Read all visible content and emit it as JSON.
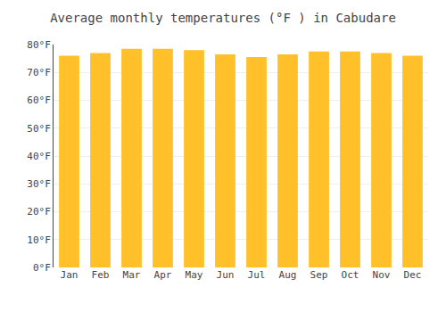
{
  "chart_data": {
    "type": "bar",
    "title": "Average monthly temperatures (°F ) in Cabudare",
    "categories": [
      "Jan",
      "Feb",
      "Mar",
      "Apr",
      "May",
      "Jun",
      "Jul",
      "Aug",
      "Sep",
      "Oct",
      "Nov",
      "Dec"
    ],
    "values": [
      76,
      77,
      78.5,
      78.5,
      78,
      76.5,
      75.5,
      76.5,
      77.5,
      77.5,
      77,
      76
    ],
    "color": "#FFC02A",
    "ylim": [
      0,
      80
    ],
    "yticks": [
      {
        "value": 0,
        "label": "0°F"
      },
      {
        "value": 10,
        "label": "10°F"
      },
      {
        "value": 20,
        "label": "20°F"
      },
      {
        "value": 30,
        "label": "30°F"
      },
      {
        "value": 40,
        "label": "40°F"
      },
      {
        "value": 50,
        "label": "50°F"
      },
      {
        "value": 60,
        "label": "60°F"
      },
      {
        "value": 70,
        "label": "70°F"
      },
      {
        "value": 80,
        "label": "80°F"
      }
    ],
    "grid": true
  }
}
